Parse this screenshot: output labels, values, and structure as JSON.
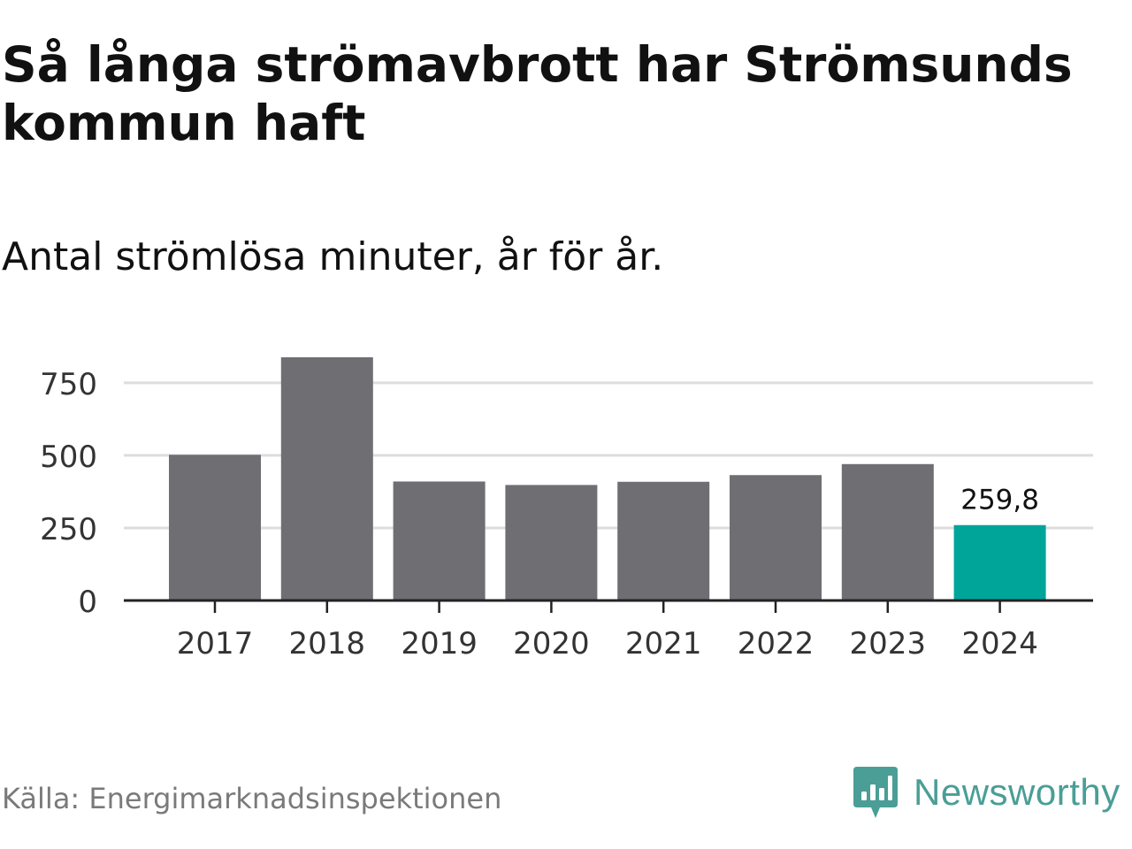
{
  "title": "Så långa strömavbrott har Strömsunds kommun haft",
  "subtitle": "Antal strömlösa minuter, år för år.",
  "source": "Källa: Energimarknadsinspektionen",
  "logo": {
    "text": "Newsworthy",
    "icon": "newsworthy-logo-icon",
    "color": "#4a9e96"
  },
  "colors": {
    "bar": "#6f6e73",
    "highlight": "#00a59a",
    "grid": "#dddddd",
    "axis": "#222222"
  },
  "chart_data": {
    "type": "bar",
    "categories": [
      "2017",
      "2018",
      "2019",
      "2020",
      "2021",
      "2022",
      "2023",
      "2024"
    ],
    "values": [
      502,
      838,
      410,
      398,
      409,
      432,
      470,
      259.8
    ],
    "highlight_index": 7,
    "data_labels": [
      {
        "index": 7,
        "text": "259,8"
      }
    ],
    "ylim": [
      0,
      838
    ],
    "yticks": [
      0,
      250,
      500,
      750
    ],
    "grid": true
  }
}
